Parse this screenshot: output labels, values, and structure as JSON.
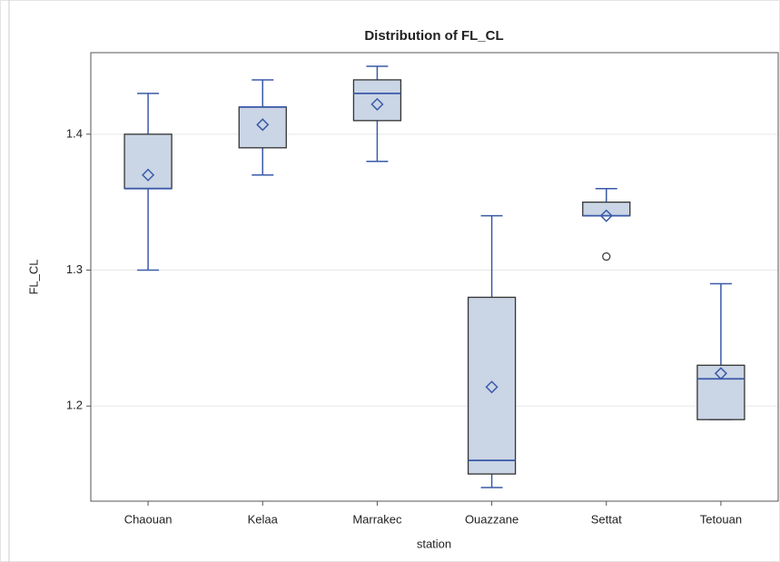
{
  "chart_data": {
    "type": "box",
    "title": "Distribution of FL_CL",
    "x_label": "station",
    "y_label": "FL_CL",
    "categories": [
      "Chaouan",
      "Kelaa",
      "Marrakec",
      "Ouazzane",
      "Settat",
      "Tetouan"
    ],
    "min": [
      1.3,
      1.37,
      1.38,
      1.14,
      1.34,
      1.19
    ],
    "q1": [
      1.36,
      1.39,
      1.41,
      1.15,
      1.34,
      1.19
    ],
    "median": [
      1.36,
      1.42,
      1.43,
      1.16,
      1.34,
      1.22
    ],
    "q3": [
      1.4,
      1.42,
      1.44,
      1.28,
      1.35,
      1.23
    ],
    "max": [
      1.43,
      1.44,
      1.45,
      1.34,
      1.36,
      1.29
    ],
    "mean": [
      1.37,
      1.407,
      1.422,
      1.214,
      1.34,
      1.224
    ],
    "outliers": [
      [],
      [],
      [],
      [],
      [
        1.31
      ],
      []
    ],
    "box_color": "#cad5e5",
    "line_color": "#3a5aa8",
    "ylim": [
      1.13,
      1.46
    ],
    "yticks": [
      1.2,
      1.3,
      1.4
    ],
    "grid": true
  }
}
